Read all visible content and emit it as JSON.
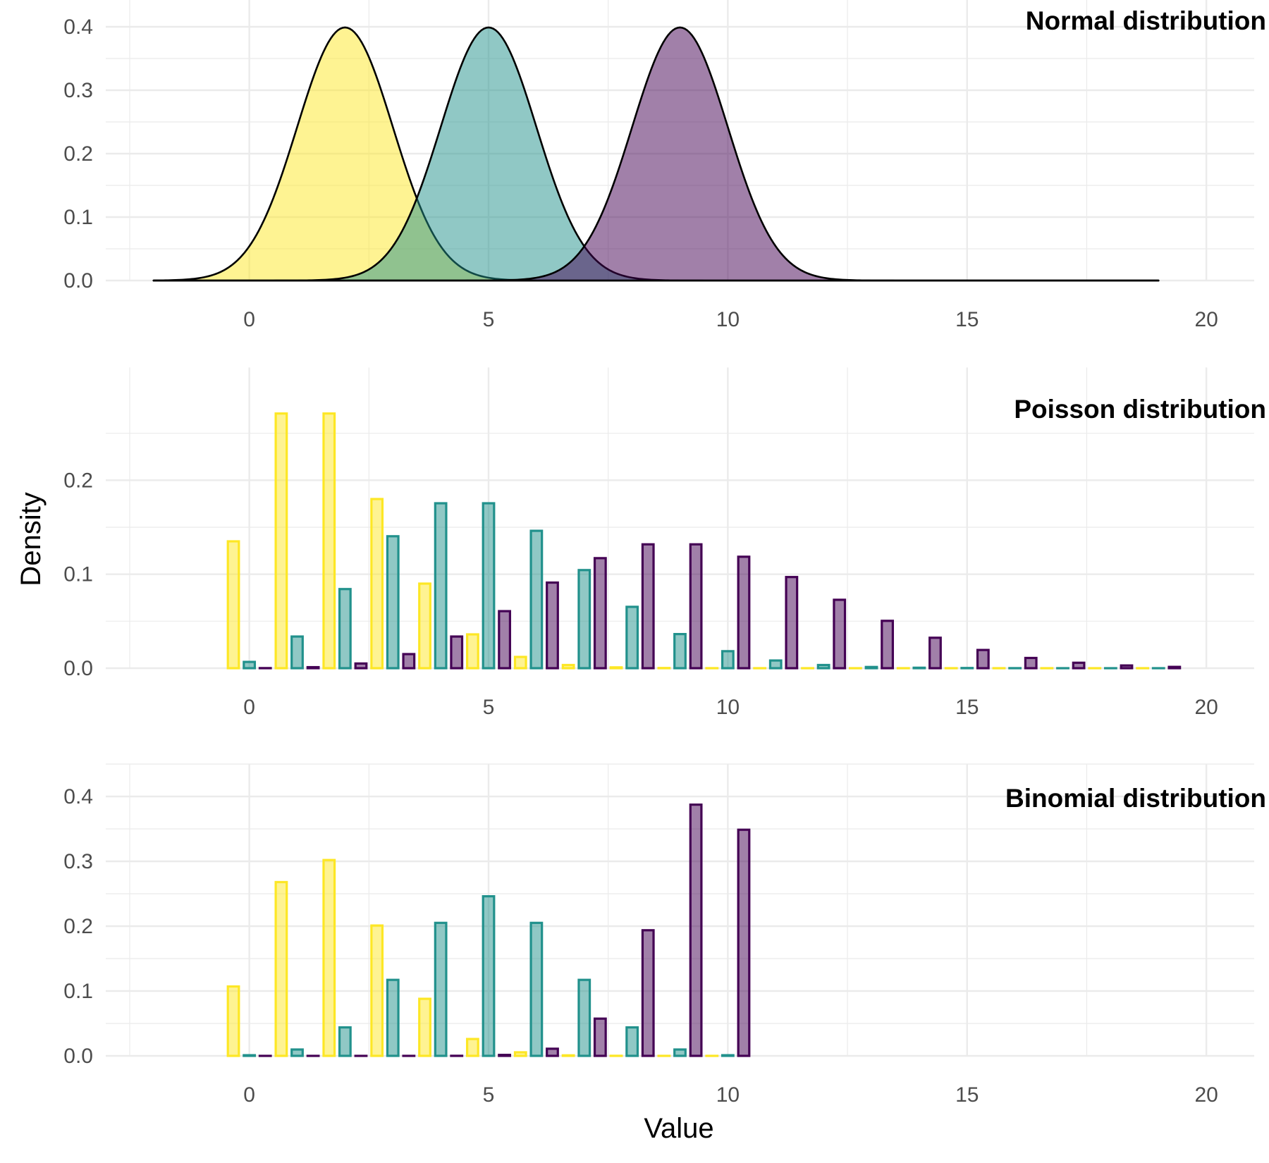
{
  "chart_data": [
    {
      "type": "area",
      "title": "Normal distribution",
      "xlabel": "",
      "ylabel": "Density",
      "xlim": [
        -3,
        21
      ],
      "ylim": [
        0,
        0.4
      ],
      "x_ticks": [
        "0",
        "5",
        "10",
        "15",
        "20"
      ],
      "y_ticks": [
        "0.0",
        "0.1",
        "0.2",
        "0.3",
        "0.4"
      ],
      "grid": true,
      "x_range": [
        -2,
        19
      ],
      "series": [
        {
          "mean": 2,
          "sd": 1,
          "color": "#FDE725"
        },
        {
          "mean": 5,
          "sd": 1,
          "color": "#21918C"
        },
        {
          "mean": 9,
          "sd": 1,
          "color": "#440154"
        }
      ]
    },
    {
      "type": "bar",
      "title": "Poisson distribution",
      "xlabel": "",
      "ylabel": "Density",
      "xlim": [
        -3,
        21
      ],
      "ylim": [
        0,
        0.27
      ],
      "x_ticks": [
        "0",
        "5",
        "10",
        "15",
        "20"
      ],
      "y_ticks": [
        "0.0",
        "0.1",
        "0.2"
      ],
      "grid": true,
      "x": [
        0,
        1,
        2,
        3,
        4,
        5,
        6,
        7,
        8,
        9,
        10,
        11,
        12,
        13,
        14,
        15,
        16,
        17,
        18,
        19
      ],
      "series": [
        {
          "color": "#FDE725",
          "values": [
            0.135,
            0.271,
            0.271,
            0.18,
            0.09,
            0.036,
            0.012,
            0.0034,
            0.0009,
            0.0002,
            4e-05,
            1e-05,
            0,
            0,
            0,
            0,
            0,
            0,
            0,
            0
          ]
        },
        {
          "color": "#21918C",
          "values": [
            0.0067,
            0.0337,
            0.0842,
            0.1404,
            0.1755,
            0.1755,
            0.1462,
            0.1044,
            0.0653,
            0.0363,
            0.0181,
            0.0082,
            0.0034,
            0.0013,
            0.0005,
            0.0002,
            5e-05,
            1e-05,
            0,
            0
          ]
        },
        {
          "color": "#440154",
          "values": [
            0.0001,
            0.0011,
            0.005,
            0.015,
            0.0337,
            0.0607,
            0.0911,
            0.1171,
            0.1318,
            0.1318,
            0.1186,
            0.097,
            0.0728,
            0.0504,
            0.0324,
            0.0194,
            0.0109,
            0.0058,
            0.0029,
            0.0014
          ]
        }
      ]
    },
    {
      "type": "bar",
      "title": "Binomial distribution",
      "xlabel": "Value",
      "ylabel": "Density",
      "xlim": [
        -3,
        21
      ],
      "ylim": [
        0,
        0.4
      ],
      "x_ticks": [
        "0",
        "5",
        "10",
        "15",
        "20"
      ],
      "y_ticks": [
        "0.0",
        "0.1",
        "0.2",
        "0.3",
        "0.4"
      ],
      "grid": true,
      "x": [
        0,
        1,
        2,
        3,
        4,
        5,
        6,
        7,
        8,
        9,
        10
      ],
      "series": [
        {
          "color": "#FDE725",
          "values": [
            0.107,
            0.268,
            0.302,
            0.201,
            0.088,
            0.026,
            0.0055,
            0.0008,
            0.0001,
            1e-05,
            0
          ]
        },
        {
          "color": "#21918C",
          "values": [
            0.001,
            0.0098,
            0.0439,
            0.1172,
            0.2051,
            0.2461,
            0.2051,
            0.1172,
            0.0439,
            0.0098,
            0.001
          ]
        },
        {
          "color": "#440154",
          "values": [
            0,
            0,
            0,
            1e-05,
            0.0001,
            0.0015,
            0.011,
            0.0574,
            0.1937,
            0.3874,
            0.3487
          ]
        }
      ]
    }
  ]
}
